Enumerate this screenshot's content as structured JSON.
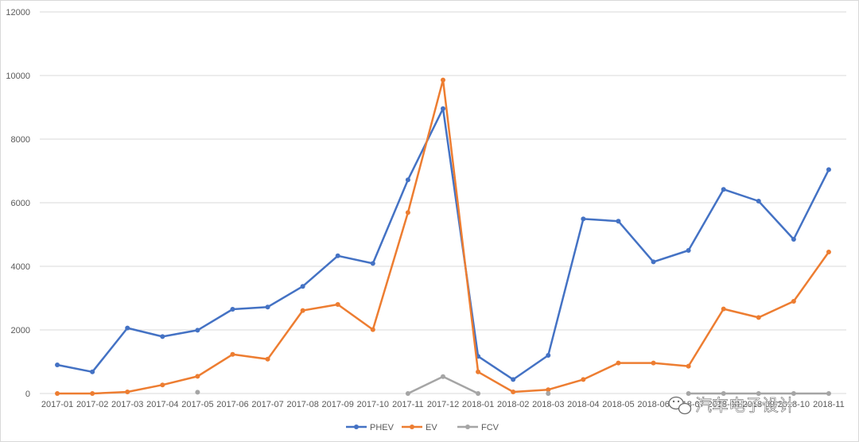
{
  "chart_data": {
    "type": "line",
    "categories": [
      "2017-01",
      "2017-02",
      "2017-03",
      "2017-04",
      "2017-05",
      "2017-06",
      "2017-07",
      "2017-08",
      "2017-09",
      "2017-10",
      "2017-11",
      "2017-12",
      "2018-01",
      "2018-02",
      "2018-03",
      "2018-04",
      "2018-05",
      "2018-06",
      "2018-07",
      "2018-08",
      "2018-09",
      "2018-10",
      "2018-11"
    ],
    "series": [
      {
        "name": "PHEV",
        "color": "#4472c4",
        "values": [
          900,
          680,
          2060,
          1790,
          1990,
          2650,
          2720,
          3370,
          4330,
          4090,
          6720,
          8960,
          1170,
          440,
          1200,
          5490,
          5420,
          4140,
          4500,
          6420,
          6050,
          4850,
          7040
        ]
      },
      {
        "name": "EV",
        "color": "#ed7d31",
        "values": [
          0,
          0,
          50,
          270,
          540,
          1230,
          1080,
          2610,
          2800,
          2010,
          5690,
          9860,
          680,
          50,
          120,
          440,
          960,
          960,
          860,
          2660,
          2390,
          2900,
          4450
        ]
      },
      {
        "name": "FCV",
        "color": "#a5a5a5",
        "values": [
          null,
          null,
          null,
          null,
          40,
          null,
          null,
          null,
          null,
          null,
          0,
          530,
          0,
          null,
          0,
          null,
          null,
          null,
          0,
          0,
          0,
          0,
          0
        ]
      }
    ],
    "ylim": [
      0,
      12000
    ],
    "yticks": [
      "0",
      "2000",
      "4000",
      "6000",
      "8000",
      "10000",
      "12000"
    ],
    "grid": true,
    "legend_position": "bottom-center"
  },
  "watermark": {
    "text": "汽车电子设计"
  }
}
